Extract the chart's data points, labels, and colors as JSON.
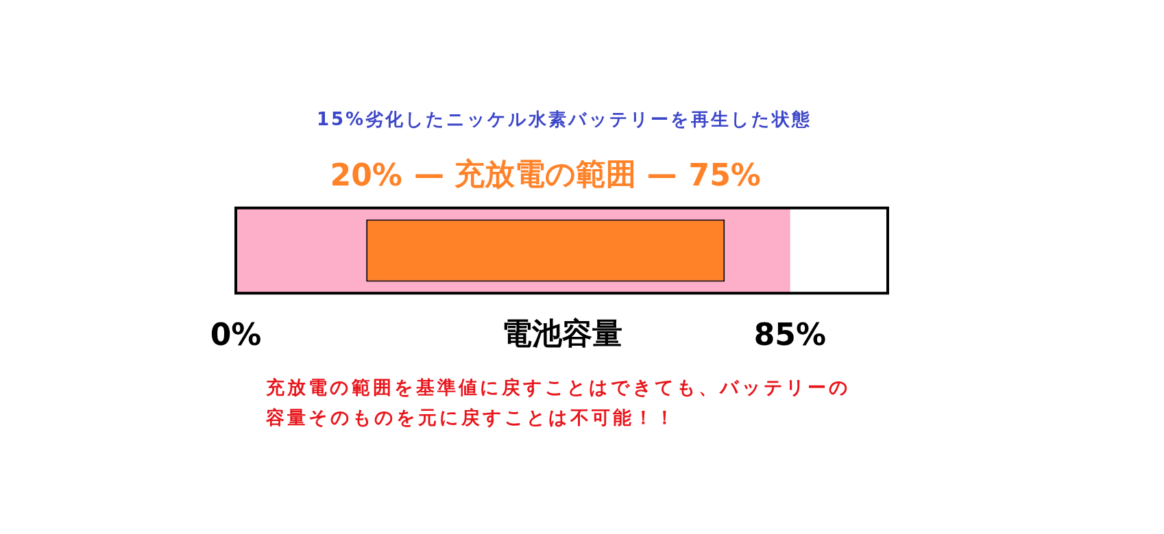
{
  "chart_data": {
    "type": "bar",
    "orientation": "horizontal",
    "title": "15%劣化したニッケル水素バッテリーを再生した状態",
    "xlabel": "電池容量",
    "categories": [
      null
    ],
    "series": [
      {
        "color": "#fdaec9",
        "base": [
          0
        ],
        "values": [
          85
        ]
      },
      {
        "name": "— 充放電の範囲 —",
        "color": "#ff8228",
        "base": [
          20
        ],
        "values": [
          55
        ]
      }
    ],
    "xlim": [
      0,
      100
    ],
    "xticks": [
      {
        "value": 0,
        "label": "0%"
      },
      {
        "value": 85,
        "label": "85%"
      }
    ],
    "x2lim": [
      0,
      100
    ],
    "x2ticks": [
      {
        "value": 20,
        "label": "20%"
      },
      {
        "value": 75,
        "label": "75%"
      }
    ],
    "grid": false,
    "legend": false,
    "annotations": [
      "充放電の範囲を基準値に戻すことはできても、バッテリーの容量そのものを元に戻すことは不可能！！"
    ]
  }
}
